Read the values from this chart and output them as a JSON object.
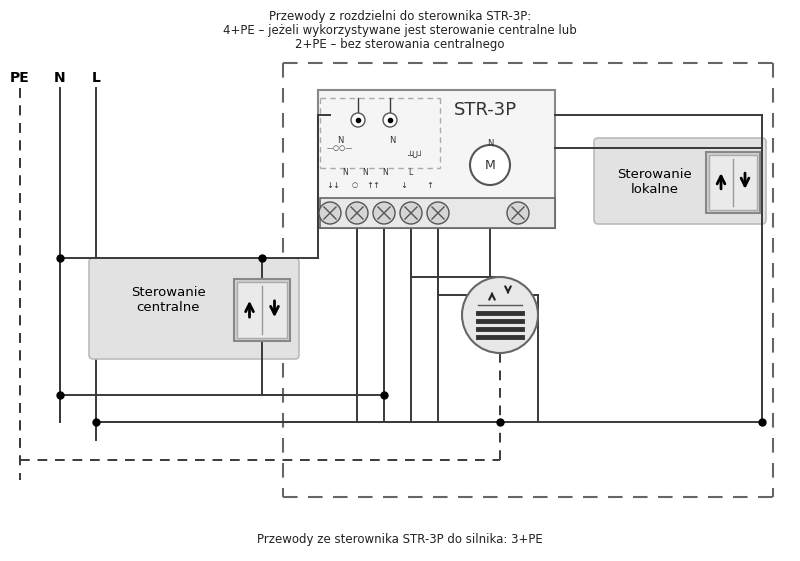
{
  "bg": "#ffffff",
  "lc": "#3a3a3a",
  "top1": "Przewody z rozdzielni do sterownika STR-3P:",
  "top2": "4+PE – jeżeli wykorzystywane jest sterowanie centralne lub",
  "top3": "2+PE – bez sterowania centralnego",
  "bot": "Przewody ze sterownika STR-3P do silnika: 3+PE",
  "pe": "PE",
  "n_lbl": "N",
  "l_lbl": "L",
  "str3p": "STR-3P",
  "sc": "Sterowanie\ncentralne",
  "sl": "Sterowanie\nlokalne"
}
